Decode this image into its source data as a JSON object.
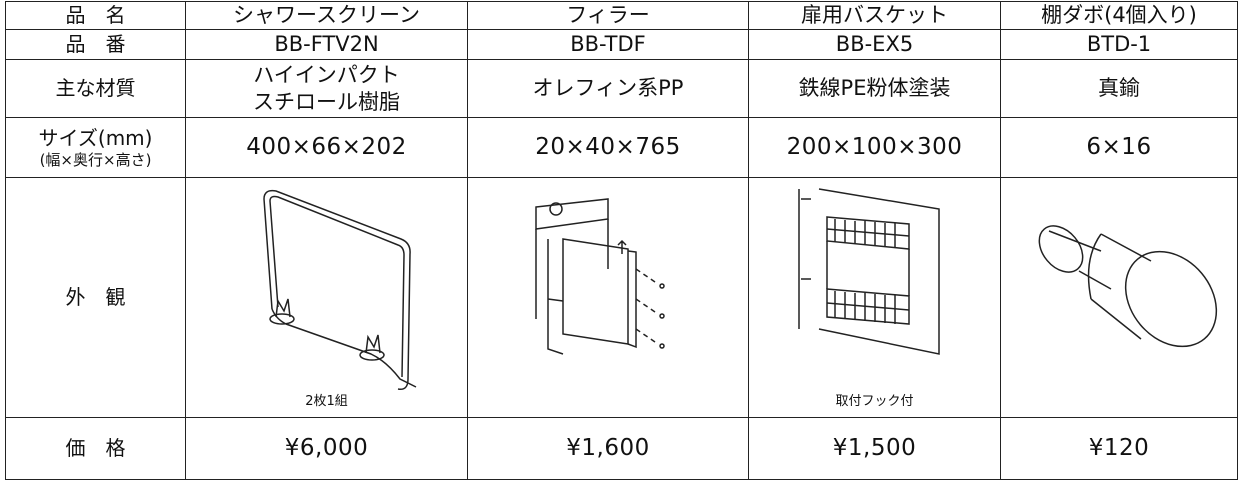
{
  "table": {
    "name_row": {
      "label": "品　名",
      "cells": [
        "シャワースクリーン",
        "フィラー",
        "扉用バスケット",
        "棚ダボ(4個入り)"
      ]
    },
    "code_row": {
      "label": "品　番",
      "cells": [
        "BB-FTV2N",
        "BB-TDF",
        "BB-EX5",
        "BTD-1"
      ]
    },
    "material_row": {
      "label": "主な材質",
      "cells": [
        [
          "ハイインパクト",
          "スチロール樹脂"
        ],
        [
          "オレフィン系PP"
        ],
        [
          "鉄線PE粉体塗装"
        ],
        [
          "真鍮"
        ]
      ]
    },
    "size_row": {
      "label": [
        "サイズ(mm)",
        "(幅×奥行×高さ)"
      ],
      "cells": [
        "400×66×202",
        "20×40×765",
        "200×100×300",
        "6×16"
      ]
    },
    "appearance_row": {
      "label": "外　観",
      "shower_caption": "2枚1組",
      "basket_caption": "取付フック付"
    },
    "price_row": {
      "label": "価　格",
      "cells": [
        "¥6,000",
        "¥1,600",
        "¥1,500",
        "¥120"
      ]
    }
  }
}
